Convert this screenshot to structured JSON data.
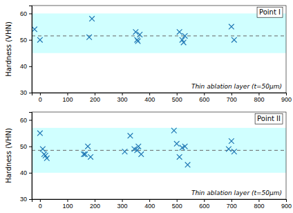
{
  "chart_data": [
    {
      "type": "scatter",
      "title": "Point I",
      "annotation": "Thin ablation layer (t=50μm)",
      "ylabel": "Hardness (VHN)",
      "x": [
        -20,
        0,
        180,
        190,
        350,
        355,
        358,
        365,
        510,
        520,
        525,
        530,
        700,
        710
      ],
      "values": [
        54,
        50,
        51,
        58,
        53,
        50,
        49.5,
        52,
        53,
        50,
        49,
        51.5,
        55,
        50
      ],
      "mean": 51.5,
      "band_lower": 45,
      "band_upper": 60,
      "xlim": [
        -30,
        900
      ],
      "ylim": [
        30,
        63
      ],
      "yticks": [
        30,
        40,
        50,
        60
      ],
      "xticks": [
        0,
        100,
        200,
        300,
        400,
        500,
        600,
        700,
        800,
        900
      ],
      "marker": "x",
      "grid": false
    },
    {
      "type": "scatter",
      "title": "Point II",
      "annotation": "Thin ablation layer (t=50μm)",
      "ylabel": "Hardness (VHN)",
      "x": [
        0,
        10,
        15,
        20,
        25,
        160,
        165,
        175,
        185,
        310,
        330,
        345,
        355,
        360,
        370,
        490,
        500,
        510,
        520,
        530,
        540,
        690,
        700,
        710
      ],
      "values": [
        55,
        49,
        47,
        46.5,
        45.5,
        47,
        47,
        50,
        46,
        48,
        54,
        49,
        48.5,
        50,
        47,
        56,
        51,
        46,
        49.5,
        50,
        43,
        49,
        52,
        48
      ],
      "mean": 48.5,
      "band_lower": 40,
      "band_upper": 57,
      "xlim": [
        -30,
        900
      ],
      "ylim": [
        30,
        63
      ],
      "yticks": [
        30,
        40,
        50,
        60
      ],
      "xticks": [
        0,
        100,
        200,
        300,
        400,
        500,
        600,
        700,
        800,
        900
      ],
      "marker": "x",
      "grid": false
    }
  ]
}
